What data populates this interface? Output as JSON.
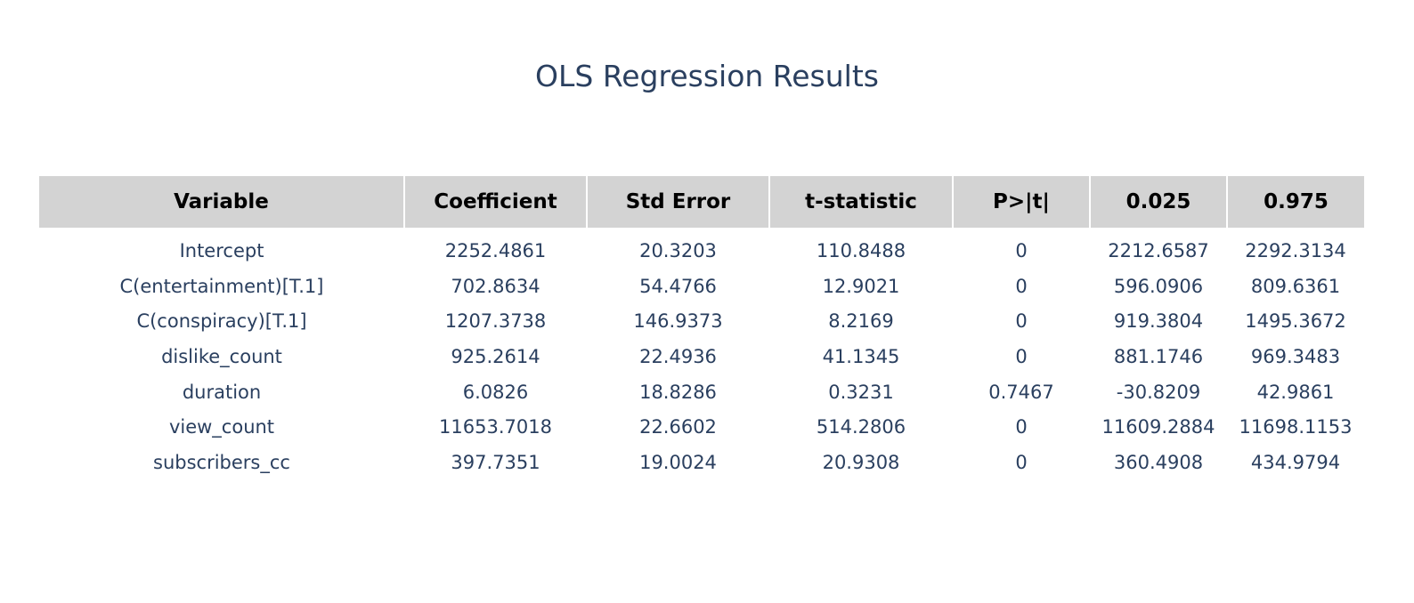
{
  "chart_data": {
    "type": "table",
    "title": "OLS Regression Results",
    "columns": [
      "Variable",
      "Coefficient",
      "Std Error",
      "t-statistic",
      "P>|t|",
      "0.025",
      "0.975"
    ],
    "rows": [
      [
        "Intercept",
        "2252.4861",
        "20.3203",
        "110.8488",
        "0",
        "2212.6587",
        "2292.3134"
      ],
      [
        "C(entertainment)[T.1]",
        "702.8634",
        "54.4766",
        "12.9021",
        "0",
        "596.0906",
        "809.6361"
      ],
      [
        "C(conspiracy)[T.1]",
        "1207.3738",
        "146.9373",
        "8.2169",
        "0",
        "919.3804",
        "1495.3672"
      ],
      [
        "dislike_count",
        "925.2614",
        "22.4936",
        "41.1345",
        "0",
        "881.1746",
        "969.3483"
      ],
      [
        "duration",
        "6.0826",
        "18.8286",
        "0.3231",
        "0.7467",
        "-30.8209",
        "42.9861"
      ],
      [
        "view_count",
        "11653.7018",
        "22.6602",
        "514.2806",
        "0",
        "11609.2884",
        "11698.1153"
      ],
      [
        "subscribers_cc",
        "397.7351",
        "19.0024",
        "20.9308",
        "0",
        "360.4908",
        "434.9794"
      ]
    ],
    "header_fill": "#d3d3d3",
    "text_color": "#2a3f5f"
  }
}
